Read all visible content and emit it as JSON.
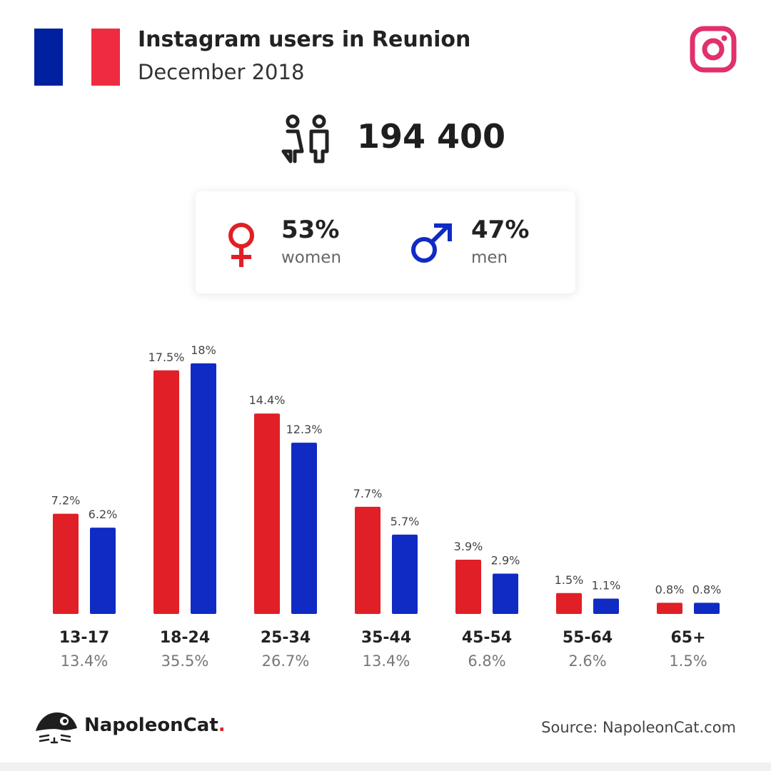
{
  "header": {
    "title": "Instagram users in Reunion",
    "subtitle": "December 2018"
  },
  "total": {
    "value": "194 400"
  },
  "gender": {
    "women_pct": "53%",
    "women_label": "women",
    "men_pct": "47%",
    "men_label": "men"
  },
  "colors": {
    "women": "#e01f26",
    "men": "#102bc4",
    "flag_blue": "#00209f",
    "flag_red": "#ef2b3f",
    "instagram": "#e1306c"
  },
  "icons": {
    "flag": "flag-icon",
    "instagram": "instagram-icon",
    "people": "people-icon",
    "female": "female-symbol-icon",
    "male": "male-symbol-icon",
    "logo": "napoleoncat-logo-icon"
  },
  "chart_data": {
    "type": "bar",
    "categories": [
      "13-17",
      "18-24",
      "25-34",
      "35-44",
      "45-54",
      "55-64",
      "65+"
    ],
    "category_totals": [
      "13.4%",
      "35.5%",
      "26.7%",
      "13.4%",
      "6.8%",
      "2.6%",
      "1.5%"
    ],
    "series": [
      {
        "key": "women",
        "color": "#e01f26",
        "values": [
          7.2,
          17.5,
          14.4,
          7.7,
          3.9,
          1.5,
          0.8
        ],
        "labels": [
          "7.2%",
          "17.5%",
          "14.4%",
          "7.7%",
          "3.9%",
          "1.5%",
          "0.8%"
        ]
      },
      {
        "key": "men",
        "color": "#102bc4",
        "values": [
          6.2,
          18,
          12.3,
          5.7,
          2.9,
          1.1,
          0.8
        ],
        "labels": [
          "6.2%",
          "18%",
          "12.3%",
          "5.7%",
          "2.9%",
          "1.1%",
          "0.8%"
        ]
      }
    ],
    "grid": false,
    "legend": "none"
  },
  "footer": {
    "brand_name": "NapoleonCat",
    "brand_dot": ".",
    "source": "Source: NapoleonCat.com"
  }
}
